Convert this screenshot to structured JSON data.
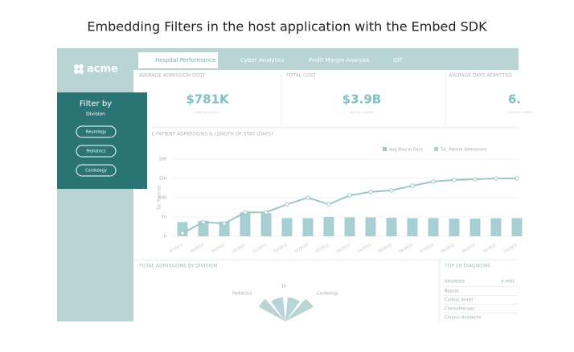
{
  "title": "Embedding Filters in the host application with the Embed SDK",
  "logo": "acme",
  "tabs": [
    "Hospital Performance",
    "Cyber Analytics",
    "Profit Margin Analysis",
    "IOT"
  ],
  "kpis": [
    {
      "label": "AVERAGE ADMISSION COST",
      "value": "$781K",
      "note": "ANNUAL CHANGE"
    },
    {
      "label": "TOTAL COST",
      "value": "$3.9B",
      "note": "ANNUAL CHANGE"
    },
    {
      "label": "AVERAGE DAYS ADMITTED",
      "value": "6.",
      "note": "ANNUAL CHANGE"
    }
  ],
  "filter": {
    "title": "Filter by",
    "subtitle": "Division",
    "options": [
      "Neurology",
      "Pediatrics",
      "Cardiology"
    ]
  },
  "chart": {
    "type": "bar",
    "title": "TOTAL PATIENT ADMISSIONS & LENGTH OF STAY (DAYS)",
    "y_label": "Tot. Patients",
    "categories": [
      "07/2011",
      "08/2011",
      "09/2011",
      "10/2011",
      "11/2011",
      "12/2011",
      "01/2012",
      "02/2012",
      "03/2012",
      "04/2012",
      "05/2012",
      "06/2012",
      "07/2012",
      "08/2012",
      "09/2012",
      "10/2012",
      "11/2012"
    ],
    "series": [
      {
        "name": "Avg Stay in Days",
        "color": "#9ec6c7",
        "type": "line",
        "values": [
          8,
          37,
          33,
          62,
          62,
          83,
          100,
          83,
          106,
          115,
          119,
          131,
          142,
          146,
          148,
          150,
          150
        ]
      },
      {
        "name": "Tot. Patient Admissions",
        "color": "#a8d0d4",
        "type": "bar",
        "values": [
          37,
          40,
          38,
          62,
          60,
          47,
          47,
          50,
          49,
          49,
          48,
          47,
          47,
          46,
          46,
          47,
          47
        ]
      }
    ],
    "ylim": [
      0,
      200
    ],
    "yticks": [
      0,
      50,
      100,
      150,
      200
    ]
  },
  "division": {
    "title": "TOTAL ADMISSIONS BY DIVISION",
    "labels": [
      "Pediatrics",
      "Cardiology"
    ],
    "tick": "1k"
  },
  "diagnosis": {
    "title": "TOP 10 DIAGNOSIS",
    "headers": [
      "DIAGNOSIS",
      "# PATIE"
    ],
    "rows": [
      "Bypass",
      "Cardiac Arrest",
      "Chemotherapy",
      "Chronic Headache"
    ]
  }
}
